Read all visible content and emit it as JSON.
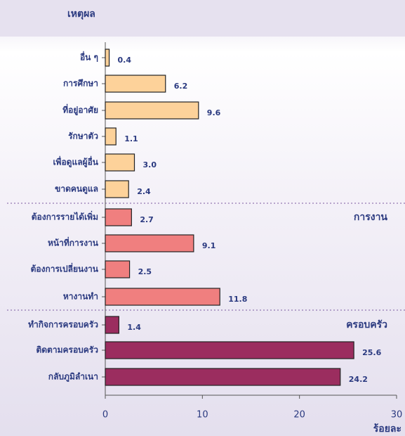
{
  "chart_data": {
    "type": "bar",
    "orientation": "horizontal",
    "y_label": "เหตุผล",
    "x_label": "ร้อยละ",
    "categories": [
      "อื่น ๆ",
      "การศึกษา",
      "ที่อยู่อาศัย",
      "รักษาตัว",
      "เพื่อดูแลผู้อื่น",
      "ขาดคนดูแล",
      "ต้องการรายได้เพิ่ม",
      "หน้าที่การงาน",
      "ต้องการเปลี่ยนงาน",
      "หางานทำ",
      "ทำกิจการครอบครัว",
      "ติดตามครอบครัว",
      "กลับภูมิลำเนา"
    ],
    "values": [
      0.4,
      6.2,
      9.6,
      1.1,
      3.0,
      2.4,
      2.7,
      9.1,
      2.5,
      11.8,
      1.4,
      25.6,
      24.2
    ],
    "value_labels": [
      "0.4",
      "6.2",
      "9.6",
      "1.1",
      "3.0",
      "2.4",
      "2.7",
      "9.1",
      "2.5",
      "11.8",
      "1.4",
      "25.6",
      "24.2"
    ],
    "colors": [
      "#fdd29a",
      "#fdd29a",
      "#fdd29a",
      "#fdd29a",
      "#fdd29a",
      "#fdd29a",
      "#f07f7f",
      "#f07f7f",
      "#f07f7f",
      "#f07f7f",
      "#9b2d5f",
      "#9b2d5f",
      "#9b2d5f"
    ],
    "annotations": [
      "การงาน",
      "ครอบครัว"
    ],
    "xlim": [
      0,
      30
    ],
    "xticks": [
      0,
      10,
      20,
      30
    ]
  }
}
